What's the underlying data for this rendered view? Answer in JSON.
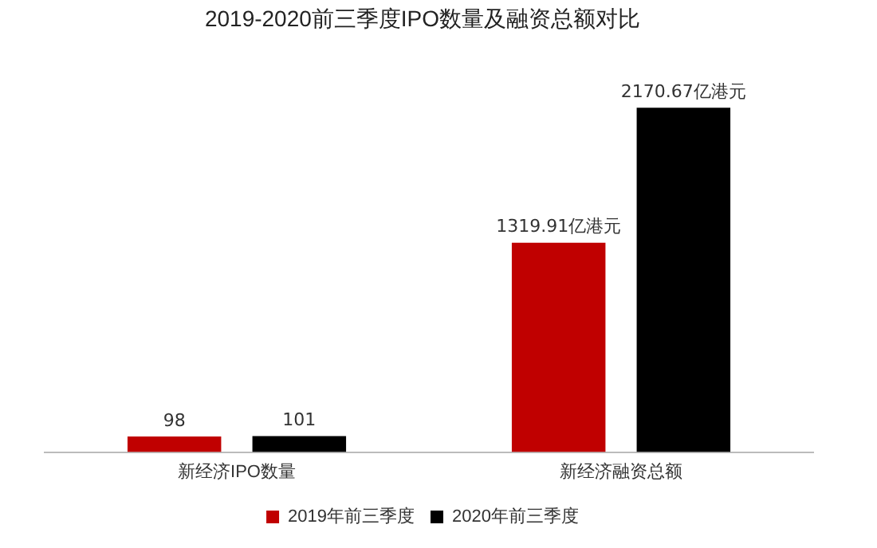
{
  "chart_data": {
    "type": "bar",
    "title": "2019-2020前三季度IPO数量及融资总额对比",
    "categories": [
      "新经济IPO数量",
      "新经济融资总额"
    ],
    "series": [
      {
        "name": "2019年前三季度",
        "color": "#c00000",
        "values": [
          98,
          1319.91
        ],
        "value_labels": [
          "98",
          "1319.91亿港元"
        ]
      },
      {
        "name": "2020年前三季度",
        "color": "#000000",
        "values": [
          101,
          2170.67
        ],
        "value_labels": [
          "101",
          "2170.67亿港元"
        ]
      }
    ],
    "tick_labels": "x",
    "grid": false,
    "legend": "bottom"
  }
}
